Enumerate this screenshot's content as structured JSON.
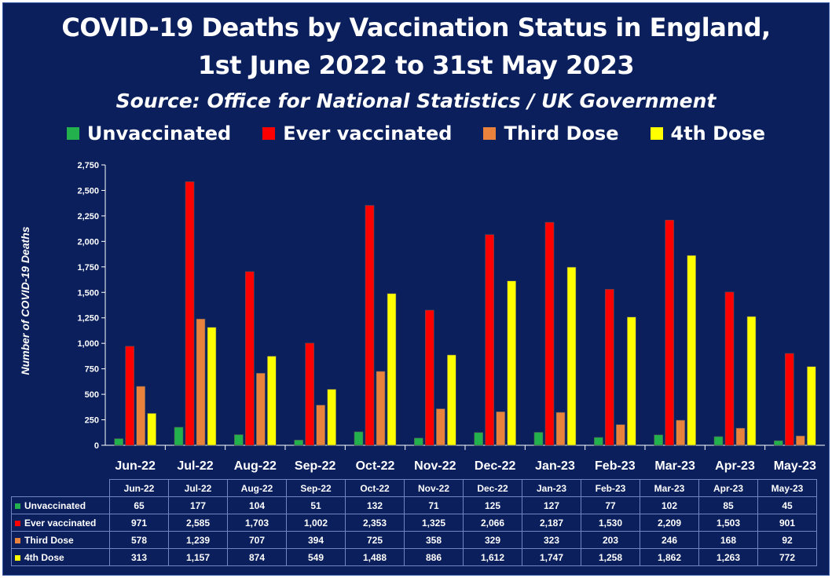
{
  "chart_data": {
    "type": "bar",
    "title": "COVID-19 Deaths by Vaccination Status in England,",
    "title_line2": "1st June 2022 to 31st May 2023",
    "subtitle": "Source: Office for National Statistics / UK Government",
    "ylabel": "Number of COVID-19 Deaths",
    "xlabel": "",
    "ylim": [
      0,
      2750
    ],
    "y_ticks": [
      "0",
      "250",
      "500",
      "750",
      "1,000",
      "1,250",
      "1,500",
      "1,750",
      "2,000",
      "2,250",
      "2,500",
      "2,750"
    ],
    "categories": [
      "Jun-22",
      "Jul-22",
      "Aug-22",
      "Sep-22",
      "Oct-22",
      "Nov-22",
      "Dec-22",
      "Jan-23",
      "Feb-23",
      "Mar-23",
      "Apr-23",
      "May-23"
    ],
    "legend_position": "top",
    "grid": false,
    "series": [
      {
        "name": "Unvaccinated",
        "color": "#22b14c",
        "values": [
          65,
          177,
          104,
          51,
          132,
          71,
          125,
          127,
          77,
          102,
          85,
          45
        ],
        "labels": [
          "65",
          "177",
          "104",
          "51",
          "132",
          "71",
          "125",
          "127",
          "77",
          "102",
          "85",
          "45"
        ]
      },
      {
        "name": "Ever vaccinated",
        "color": "#ff0000",
        "values": [
          971,
          2585,
          1703,
          1002,
          2353,
          1325,
          2066,
          2187,
          1530,
          2209,
          1503,
          901
        ],
        "labels": [
          "971",
          "2,585",
          "1,703",
          "1,002",
          "2,353",
          "1,325",
          "2,066",
          "2,187",
          "1,530",
          "2,209",
          "1,503",
          "901"
        ]
      },
      {
        "name": "Third Dose",
        "color": "#e8823c",
        "values": [
          578,
          1239,
          707,
          394,
          725,
          358,
          329,
          323,
          203,
          246,
          168,
          92
        ],
        "labels": [
          "578",
          "1,239",
          "707",
          "394",
          "725",
          "358",
          "329",
          "323",
          "203",
          "246",
          "168",
          "92"
        ]
      },
      {
        "name": "4th Dose",
        "color": "#ffff00",
        "values": [
          313,
          1157,
          874,
          549,
          1488,
          886,
          1612,
          1747,
          1258,
          1862,
          1263,
          772
        ],
        "labels": [
          "313",
          "1,157",
          "874",
          "549",
          "1,488",
          "886",
          "1,612",
          "1,747",
          "1,258",
          "1,862",
          "1,263",
          "772"
        ]
      }
    ]
  }
}
